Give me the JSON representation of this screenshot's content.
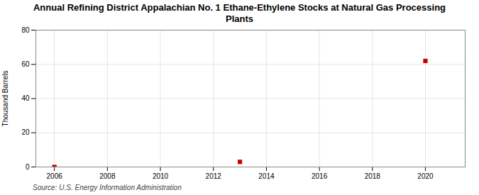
{
  "chart_data": {
    "type": "scatter",
    "title": "Annual Refining District Appalachian No. 1 Ethane-Ethylene Stocks at Natural Gas Processing\nPlants",
    "ylabel": "Thousand Barrels",
    "source": "Source: U.S. Energy Information Administration",
    "x": [
      2006,
      2013,
      2020
    ],
    "values": [
      0,
      3,
      62
    ],
    "color": "#cc0000",
    "marker": "square",
    "xlim": [
      2005.3,
      2021.5
    ],
    "ylim": [
      0,
      80
    ],
    "xticks": [
      2006,
      2008,
      2010,
      2012,
      2014,
      2016,
      2018,
      2020
    ],
    "yticks": [
      0,
      20,
      40,
      60,
      80
    ],
    "grid": true
  }
}
